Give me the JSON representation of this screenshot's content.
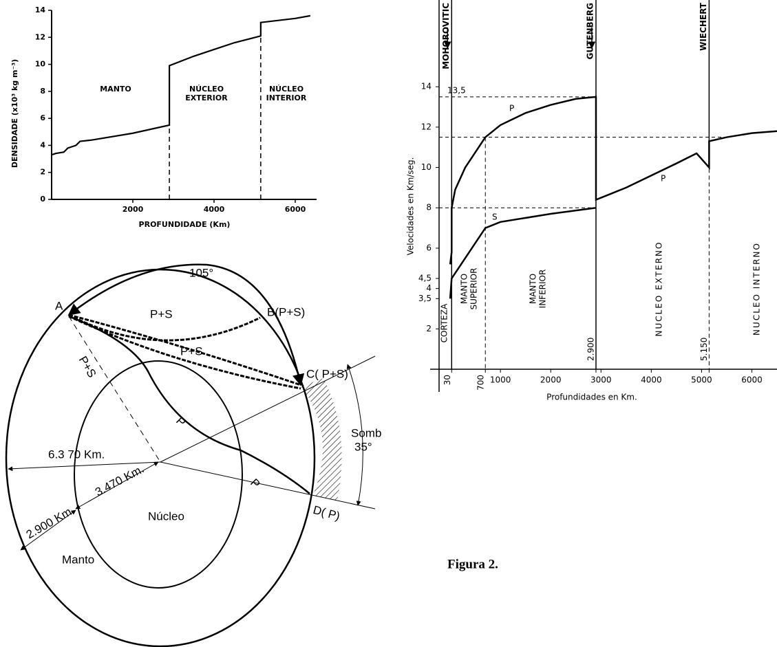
{
  "chart_data": [
    {
      "type": "line",
      "y_label": "DENSIDADE (x10³ kg m⁻³)",
      "x_label": "PROFUNDIDADE (Km)",
      "annotations": [
        "MANTO",
        "NÚCLEO",
        "EXTERIOR",
        "NÚCLEO",
        "INTERIOR"
      ],
      "x": [
        0,
        100,
        300,
        400,
        500,
        600,
        700,
        1000,
        2000,
        2900,
        2900,
        3500,
        4000,
        4500,
        5150,
        5150,
        6000,
        6371
      ],
      "values": [
        3.3,
        3.4,
        3.5,
        3.8,
        3.9,
        4.0,
        4.3,
        4.4,
        4.9,
        5.5,
        9.9,
        10.6,
        11.1,
        11.6,
        12.1,
        13.1,
        13.4,
        13.6
      ],
      "color": "#000000",
      "boundaries": [
        2900,
        5150
      ],
      "xlim": [
        0,
        6500
      ],
      "ylim": [
        0,
        14
      ],
      "xticks": [
        2000,
        4000,
        6000
      ],
      "yticks": [
        0,
        2,
        4,
        6,
        8,
        10,
        12,
        14
      ]
    },
    {
      "type": "line",
      "y_label": "Velocidades en Km/seg.",
      "x_label": "Profundidades en Km.",
      "series": [
        {
          "name": "P",
          "color": "#000000",
          "x": [
            0,
            30,
            30,
            100,
            300,
            700,
            1000,
            1500,
            2000,
            2500,
            2900,
            2900,
            3500,
            4000,
            4500,
            4900,
            5150,
            5150,
            5500,
            6000,
            6500
          ],
          "values": [
            5.2,
            5.8,
            8.0,
            8.9,
            10.0,
            11.5,
            12.1,
            12.7,
            13.1,
            13.4,
            13.5,
            8.4,
            9.0,
            9.6,
            10.2,
            10.7,
            10.0,
            11.3,
            11.5,
            11.7,
            11.8
          ]
        },
        {
          "name": "S",
          "color": "#000000",
          "x": [
            0,
            30,
            700,
            1000,
            2000,
            2900
          ],
          "values": [
            3.5,
            4.5,
            7.0,
            7.3,
            7.7,
            8.0
          ]
        }
      ],
      "reference_lines": [
        {
          "value": 13.5,
          "label": "13,5"
        },
        11.5,
        8
      ],
      "boundaries": [
        {
          "value": 30,
          "label": "MOHOROVITIC"
        },
        {
          "value": 2900,
          "label": "GUTENBERG"
        },
        {
          "value": 5150,
          "label": "WIECHERT"
        }
      ],
      "dashed_lines": [
        700
      ],
      "regions": [
        [
          "CORTEZA"
        ],
        [
          "MANTO",
          "SUPERIOR"
        ],
        [
          "MANTO",
          "INFERIOR"
        ],
        [
          "NUCLEO EXTERNO"
        ],
        [
          "NUCLEO INTERNO"
        ]
      ],
      "xlim": [
        -220,
        6500
      ],
      "ylim": [
        0,
        18.3
      ],
      "xticks": [
        30,
        700,
        1000,
        2000,
        {
          "value": 2900,
          "label": "2.900"
        },
        3000,
        4000,
        5000,
        {
          "value": 5150,
          "label": "5.150"
        },
        6000
      ],
      "yticks": [
        2,
        {
          "value": 3.5,
          "label": "3,5"
        },
        4,
        {
          "value": 4.5,
          "label": "4,5"
        },
        6,
        8,
        10,
        12,
        14
      ]
    }
  ],
  "diagram": {
    "arc": "105°",
    "point_a": "A",
    "point_b": "B(P+S)",
    "point_c": "C( P+S)",
    "point_d": "D( P)",
    "ray_ps": "P+S",
    "ray_p": "P",
    "shadow": "Somb",
    "shadow_angle": "35°",
    "earth_radius": "6.3 70 Km.",
    "core_radius": "3.470 Km.",
    "mantle_depth": "2.900 Km",
    "core": "Núcleo",
    "mantle": "Manto"
  },
  "caption": "Figura 2."
}
